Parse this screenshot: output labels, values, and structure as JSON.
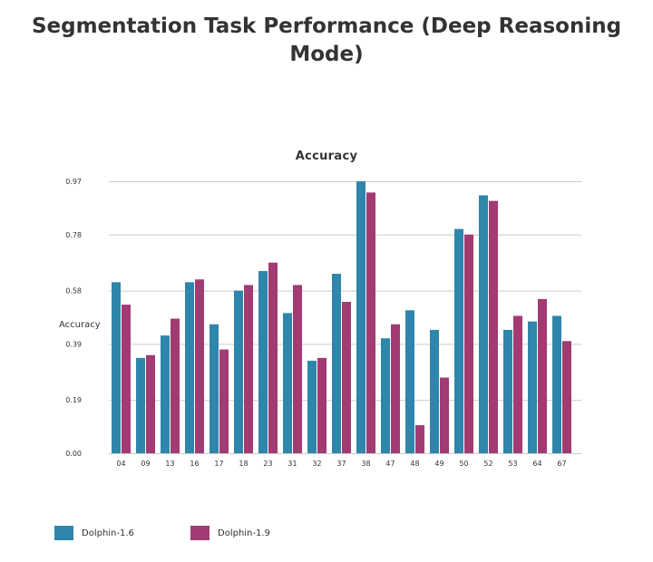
{
  "title": "Segmentation Task Performance (Deep Reasoning Mode)",
  "chart_data": {
    "type": "bar",
    "title": "Segmentation Task Performance (Deep Reasoning Mode)",
    "subtitle": "Accuracy",
    "xlabel": "",
    "ylabel": "Accuracy",
    "ylim": [
      0,
      0.97
    ],
    "yticks": [
      "0.00",
      "0.19",
      "0.39",
      "0.58",
      "0.78",
      "0.97"
    ],
    "categories": [
      "04",
      "09",
      "13",
      "16",
      "17",
      "18",
      "23",
      "31",
      "32",
      "37",
      "38",
      "47",
      "48",
      "49",
      "50",
      "52",
      "53",
      "64",
      "67"
    ],
    "series": [
      {
        "name": "Dolphin-1.6",
        "color": "#2e86ab",
        "values": [
          0.61,
          0.34,
          0.42,
          0.61,
          0.46,
          0.58,
          0.65,
          0.5,
          0.33,
          0.64,
          0.97,
          0.41,
          0.51,
          0.44,
          0.8,
          0.92,
          0.44,
          0.47,
          0.49
        ]
      },
      {
        "name": "Dolphin-1.9",
        "color": "#a23b72",
        "values": [
          0.53,
          0.35,
          0.48,
          0.62,
          0.37,
          0.6,
          0.68,
          0.6,
          0.34,
          0.54,
          0.93,
          0.46,
          0.1,
          0.27,
          0.78,
          0.9,
          0.49,
          0.55,
          0.4
        ]
      }
    ],
    "grid": true,
    "legend": "bottom-left"
  }
}
